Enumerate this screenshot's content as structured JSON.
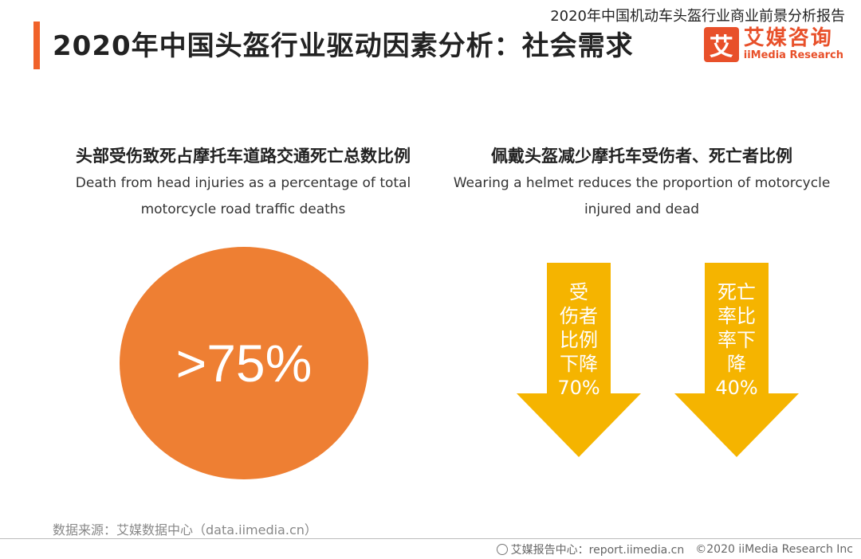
{
  "header": {
    "report_title": "2020年中国机动车头盔行业商业前景分析报告",
    "page_title": "2020年中国头盔行业驱动因素分析：社会需求"
  },
  "logo": {
    "badge": "艾",
    "name_cn": "艾媒咨询",
    "name_en": "iiMedia Research"
  },
  "colors": {
    "accent": "#f0622a",
    "circle": "#ee7f33",
    "arrow": "#f5b400",
    "logo": "#e8502a"
  },
  "chart_data": [
    {
      "type": "single-value",
      "title": "头部受伤致死占摩托车道路交通死亡总数比例",
      "subtitle_line1": "Death from head injuries as a percentage of total",
      "subtitle_line2": "motorcycle road traffic deaths",
      "value": 75,
      "display_value": ">75%"
    },
    {
      "type": "down-arrows",
      "title": "佩戴头盔减少摩托车受伤者、死亡者比例",
      "subtitle_line1": "Wearing a helmet reduces the proportion of motorcycle",
      "subtitle_line2": "injured and dead",
      "items": [
        {
          "label_lines": [
            "受",
            "伤者",
            "比例",
            "下降"
          ],
          "value": 70,
          "display_value": "70%"
        },
        {
          "label_lines": [
            "死亡",
            "率比",
            "率下",
            "降"
          ],
          "value": 40,
          "display_value": "40%"
        }
      ]
    }
  ],
  "footer": {
    "source": "数据来源：艾媒数据中心（data.iimedia.cn）",
    "report_center": "艾媒报告中心：report.iimedia.cn",
    "copyright": "©2020  iiMedia Research  Inc"
  }
}
